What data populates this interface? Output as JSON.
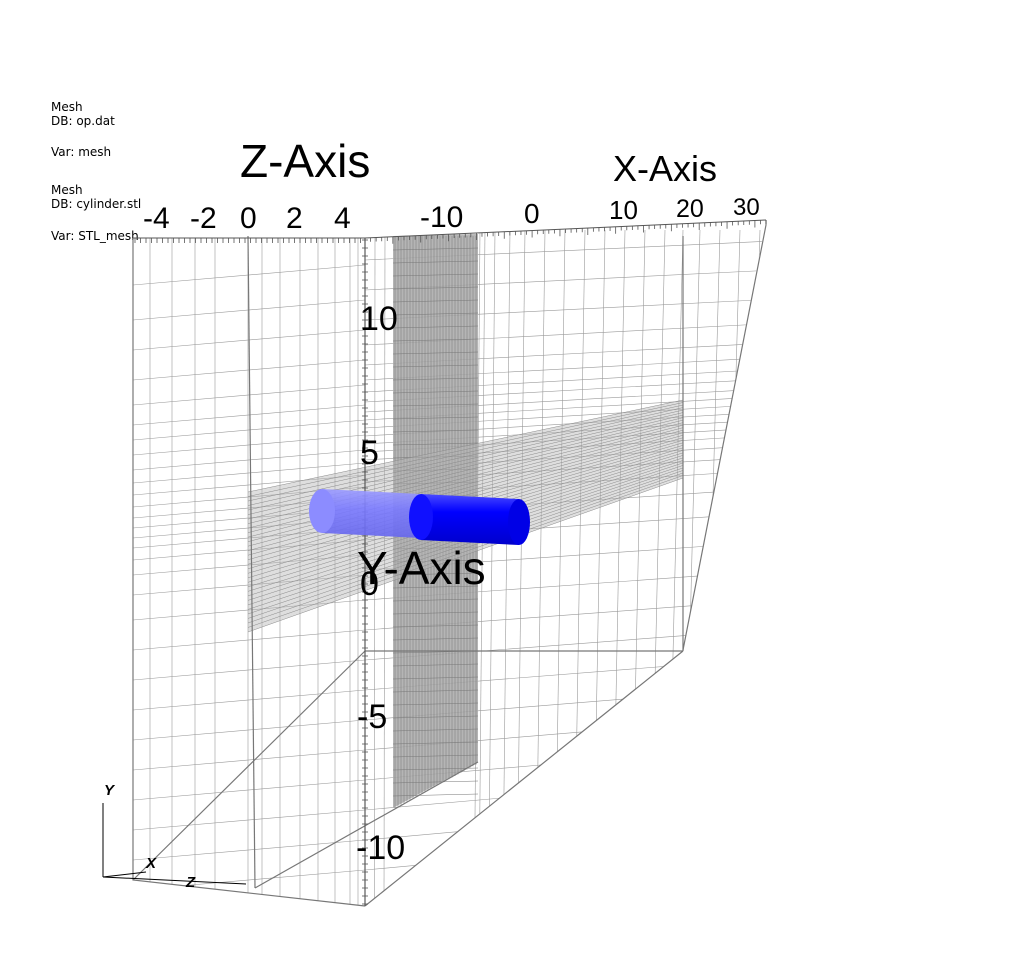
{
  "legend": [
    {
      "title": "Mesh",
      "db": "DB: op.dat",
      "var": "Var: mesh"
    },
    {
      "title": "Mesh",
      "db": "DB: cylinder.stl",
      "var": "Var: STL_mesh"
    }
  ],
  "axes": {
    "z": {
      "title": "Z-Axis",
      "ticks": [
        "-4",
        "-2",
        "0",
        "2",
        "4"
      ]
    },
    "x": {
      "title": "X-Axis",
      "ticks": [
        "-10",
        "0",
        "10",
        "20",
        "30"
      ]
    },
    "y": {
      "title": "Y-Axis",
      "ticks": [
        "10",
        "5",
        "0",
        "-5",
        "-10"
      ]
    }
  },
  "triad": {
    "y": "Y",
    "x": "X",
    "z": "Z"
  },
  "colors": {
    "mesh_lines": "#888888",
    "dense_band": "#9a9a9a",
    "cylinder": "#0000ff",
    "cylinder_ghost": "#7a7aff",
    "background": "#ffffff"
  }
}
